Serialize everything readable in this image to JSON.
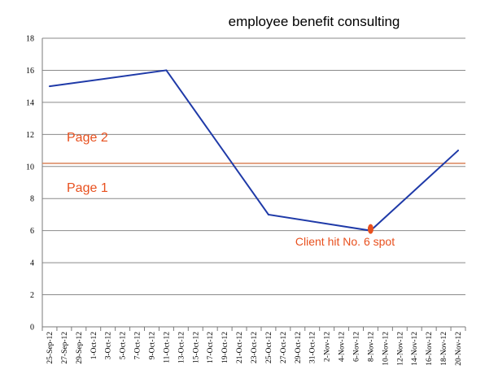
{
  "chart_data": {
    "type": "line",
    "title": "employee benefit consulting",
    "xlabel": "",
    "ylabel": "",
    "ylim": [
      0,
      18
    ],
    "yticks": [
      0,
      2,
      4,
      6,
      8,
      10,
      12,
      14,
      16,
      18
    ],
    "grid": true,
    "legend": "none",
    "categories": [
      "25-Sep-12",
      "27-Sep-12",
      "29-Sep-12",
      "1-Oct-12",
      "3-Oct-12",
      "5-Oct-12",
      "7-Oct-12",
      "9-Oct-12",
      "11-Oct-12",
      "13-Oct-12",
      "15-Oct-12",
      "17-Oct-12",
      "19-Oct-12",
      "21-Oct-12",
      "23-Oct-12",
      "25-Oct-12",
      "27-Oct-12",
      "29-Oct-12",
      "31-Oct-12",
      "2-Nov-12",
      "4-Nov-12",
      "6-Nov-12",
      "8-Nov-12",
      "10-Nov-12",
      "12-Nov-12",
      "14-Nov-12",
      "16-Nov-12",
      "18-Nov-12",
      "20-Nov-12"
    ],
    "series": [
      {
        "color": "#1f3aa8",
        "points": [
          {
            "x": "25-Sep-12",
            "y": 15
          },
          {
            "x": "11-Oct-12",
            "y": 16
          },
          {
            "x": "25-Oct-12",
            "y": 7
          },
          {
            "x": "8-Nov-12",
            "y": 6
          },
          {
            "x": "20-Nov-12",
            "y": 11
          }
        ]
      }
    ],
    "reference_line": {
      "y": 10.2,
      "color": "#d9835a"
    },
    "annotations": {
      "page2": {
        "text": "Page 2",
        "color": "#e8501e"
      },
      "page1": {
        "text": "Page 1",
        "color": "#e8501e"
      },
      "client": {
        "text": "Client hit No. 6 spot",
        "color": "#e8501e",
        "x": "8-Nov-12",
        "y": 6
      }
    }
  }
}
